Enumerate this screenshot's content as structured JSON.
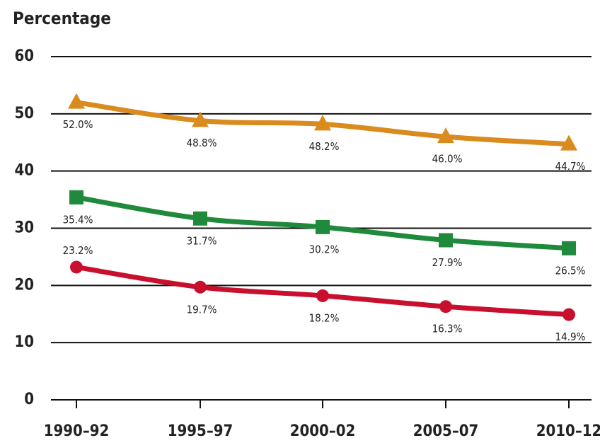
{
  "chart_data": {
    "type": "line",
    "ylabel": "Percentage",
    "categories": [
      "1990–92",
      "1995–97",
      "2000–02",
      "2005–07",
      "2010–12"
    ],
    "ylim": [
      0,
      60
    ],
    "yticks": [
      0,
      10,
      20,
      30,
      40,
      50,
      60
    ],
    "grid": true,
    "series": [
      {
        "color": "#d98b1e",
        "marker": "triangle",
        "values": [
          52.0,
          48.8,
          48.2,
          46.0,
          44.7
        ],
        "value_labels": [
          "52.0%",
          "48.8%",
          "48.2%",
          "46.0%",
          "44.7%"
        ]
      },
      {
        "color": "#1f8a3b",
        "marker": "square",
        "values": [
          35.4,
          31.7,
          30.2,
          27.9,
          26.5
        ],
        "value_labels": [
          "35.4%",
          "31.7%",
          "30.2%",
          "27.9%",
          "26.5%"
        ]
      },
      {
        "color": "#c8102e",
        "marker": "circle",
        "values": [
          23.2,
          19.7,
          18.2,
          16.3,
          14.9
        ],
        "value_labels": [
          "23.2%",
          "19.7%",
          "18.2%",
          "16.3%",
          "14.9%"
        ],
        "label_positions": [
          "above",
          "below",
          "below",
          "below",
          "below"
        ]
      }
    ]
  }
}
